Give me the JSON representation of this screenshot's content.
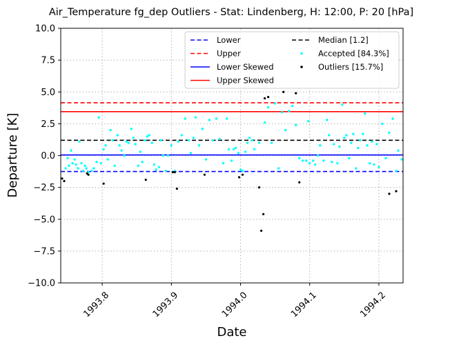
{
  "chart_data": {
    "type": "scatter",
    "title": "Air_Temperature fg_dep Outliers - Stat: Lindenberg, H: 12:00, P: 20 [hPa]",
    "xlabel": "Date",
    "ylabel": "Departure [K]",
    "xlim": [
      1993.74,
      1994.235
    ],
    "ylim": [
      -10.0,
      10.0
    ],
    "grid": true,
    "legend_position": "top-right",
    "xticks": [
      {
        "value": 1993.8,
        "label": "1993.8"
      },
      {
        "value": 1993.9,
        "label": "1993.9"
      },
      {
        "value": 1994.0,
        "label": "1994.0"
      },
      {
        "value": 1994.1,
        "label": "1994.1"
      },
      {
        "value": 1994.2,
        "label": "1994.2"
      }
    ],
    "yticks": [
      {
        "value": 10.0,
        "label": "10.0"
      },
      {
        "value": 7.5,
        "label": "7.5"
      },
      {
        "value": 5.0,
        "label": "5.0"
      },
      {
        "value": 2.5,
        "label": "2.5"
      },
      {
        "value": 0.0,
        "label": "0.0"
      },
      {
        "value": -2.5,
        "label": "−2.5"
      },
      {
        "value": -5.0,
        "label": "−5.0"
      },
      {
        "value": -7.5,
        "label": "−7.5"
      },
      {
        "value": -10.0,
        "label": "−10.0"
      }
    ],
    "reference_lines": [
      {
        "name": "Lower",
        "y": -1.25,
        "color": "#0000ff",
        "style": "dashed"
      },
      {
        "name": "Upper",
        "y": 4.15,
        "color": "#ff0000",
        "style": "dashed"
      },
      {
        "name": "Lower Skewed",
        "y": 0.05,
        "color": "#0000ff",
        "style": "solid"
      },
      {
        "name": "Upper Skewed",
        "y": 3.45,
        "color": "#ff0000",
        "style": "solid"
      },
      {
        "name": "Median [1.2]",
        "y": 1.2,
        "color": "#000000",
        "style": "dashed"
      }
    ],
    "legend_order": [
      "Lower",
      "Median [1.2]",
      "Upper",
      "Accepted [84.3%]",
      "Lower Skewed",
      "Outliers [15.7%]",
      "Upper Skewed"
    ],
    "series": [
      {
        "name": "Accepted [84.3%]",
        "color": "#00ffff",
        "points": [
          [
            1993.747,
            -1.0
          ],
          [
            1993.75,
            -0.2
          ],
          [
            1993.752,
            -0.8
          ],
          [
            1993.755,
            0.4
          ],
          [
            1993.757,
            -0.6
          ],
          [
            1993.76,
            -0.3
          ],
          [
            1993.762,
            -0.7
          ],
          [
            1993.765,
            -1.0
          ],
          [
            1993.767,
            1.1
          ],
          [
            1993.77,
            -0.6
          ],
          [
            1993.772,
            -1.2
          ],
          [
            1993.775,
            -0.8
          ],
          [
            1993.777,
            -1.0
          ],
          [
            1993.78,
            -1.3
          ],
          [
            1993.785,
            -1.2
          ],
          [
            1993.788,
            -1.0
          ],
          [
            1993.792,
            -0.5
          ],
          [
            1993.795,
            3.0
          ],
          [
            1993.798,
            -0.6
          ],
          [
            1993.802,
            0.5
          ],
          [
            1993.805,
            0.8
          ],
          [
            1993.808,
            -0.3
          ],
          [
            1993.812,
            2.0
          ],
          [
            1993.815,
            1.2
          ],
          [
            1993.818,
            -0.8
          ],
          [
            1993.822,
            1.6
          ],
          [
            1993.825,
            0.8
          ],
          [
            1993.828,
            0.4
          ],
          [
            1993.832,
            0.0
          ],
          [
            1993.835,
            1.1
          ],
          [
            1993.838,
            1.0
          ],
          [
            1993.842,
            2.1
          ],
          [
            1993.845,
            1.4
          ],
          [
            1993.848,
            0.9
          ],
          [
            1993.852,
            -0.8
          ],
          [
            1993.855,
            0.3
          ],
          [
            1993.858,
            -0.5
          ],
          [
            1993.862,
            1.2
          ],
          [
            1993.865,
            1.5
          ],
          [
            1993.868,
            1.6
          ],
          [
            1993.872,
            1.0
          ],
          [
            1993.875,
            -0.7
          ],
          [
            1993.878,
            -1.1
          ],
          [
            1993.882,
            -0.9
          ],
          [
            1993.885,
            1.2
          ],
          [
            1993.888,
            0.0
          ],
          [
            1993.892,
            -1.2
          ],
          [
            1993.895,
            0.0
          ],
          [
            1993.9,
            0.8
          ],
          [
            1993.905,
            -1.2
          ],
          [
            1993.91,
            1.1
          ],
          [
            1993.915,
            1.6
          ],
          [
            1993.92,
            2.9
          ],
          [
            1993.925,
            1.2
          ],
          [
            1993.928,
            0.2
          ],
          [
            1993.932,
            1.4
          ],
          [
            1993.935,
            3.0
          ],
          [
            1993.94,
            0.8
          ],
          [
            1993.945,
            2.1
          ],
          [
            1993.95,
            -0.3
          ],
          [
            1993.955,
            2.8
          ],
          [
            1993.96,
            1.2
          ],
          [
            1993.965,
            2.9
          ],
          [
            1993.97,
            1.3
          ],
          [
            1993.975,
            -0.6
          ],
          [
            1993.98,
            2.9
          ],
          [
            1993.983,
            0.5
          ],
          [
            1993.987,
            -0.4
          ],
          [
            1993.99,
            0.5
          ],
          [
            1993.993,
            0.6
          ],
          [
            1993.997,
            0.2
          ],
          [
            1994.0,
            -1.1
          ],
          [
            1994.003,
            -1.2
          ],
          [
            1994.007,
            0.3
          ],
          [
            1994.01,
            1.0
          ],
          [
            1994.013,
            1.4
          ],
          [
            1994.017,
            1.2
          ],
          [
            1994.02,
            0.5
          ],
          [
            1994.027,
            1.0
          ],
          [
            1994.035,
            2.6
          ],
          [
            1994.04,
            3.8
          ],
          [
            1994.045,
            1.0
          ],
          [
            1994.05,
            4.1
          ],
          [
            1994.055,
            -1.0
          ],
          [
            1994.06,
            3.4
          ],
          [
            1994.065,
            2.0
          ],
          [
            1994.07,
            3.5
          ],
          [
            1994.075,
            3.9
          ],
          [
            1994.08,
            2.4
          ],
          [
            1994.085,
            -0.2
          ],
          [
            1994.09,
            -0.4
          ],
          [
            1994.095,
            -0.4
          ],
          [
            1994.098,
            2.7
          ],
          [
            1994.1,
            -0.6
          ],
          [
            1994.105,
            -0.4
          ],
          [
            1994.108,
            -0.7
          ],
          [
            1994.112,
            0.0
          ],
          [
            1994.115,
            0.8
          ],
          [
            1994.12,
            -0.4
          ],
          [
            1994.125,
            2.8
          ],
          [
            1994.128,
            1.6
          ],
          [
            1994.132,
            -0.5
          ],
          [
            1994.135,
            0.9
          ],
          [
            1994.14,
            -0.6
          ],
          [
            1994.143,
            0.7
          ],
          [
            1994.147,
            4.0
          ],
          [
            1994.15,
            1.4
          ],
          [
            1994.153,
            1.6
          ],
          [
            1994.157,
            -0.2
          ],
          [
            1994.16,
            1.0
          ],
          [
            1994.163,
            1.7
          ],
          [
            1994.167,
            -1.0
          ],
          [
            1994.17,
            0.6
          ],
          [
            1994.173,
            1.2
          ],
          [
            1994.177,
            1.7
          ],
          [
            1994.18,
            3.3
          ],
          [
            1994.183,
            0.8
          ],
          [
            1994.187,
            -0.6
          ],
          [
            1994.19,
            1.1
          ],
          [
            1994.193,
            -0.7
          ],
          [
            1994.197,
            0.9
          ],
          [
            1994.2,
            -0.9
          ],
          [
            1994.205,
            2.5
          ],
          [
            1994.21,
            -0.2
          ],
          [
            1994.215,
            1.8
          ],
          [
            1994.22,
            2.9
          ],
          [
            1994.225,
            -1.2
          ],
          [
            1994.228,
            0.4
          ],
          [
            1994.233,
            -0.3
          ]
        ]
      },
      {
        "name": "Outliers [15.7%]",
        "color": "#000000",
        "points": [
          [
            1993.742,
            -1.8
          ],
          [
            1993.745,
            -2.0
          ],
          [
            1993.778,
            -1.4
          ],
          [
            1993.78,
            -1.5
          ],
          [
            1993.802,
            -2.2
          ],
          [
            1993.863,
            -1.9
          ],
          [
            1993.902,
            -1.3
          ],
          [
            1993.905,
            -1.3
          ],
          [
            1993.908,
            -2.6
          ],
          [
            1993.948,
            -1.5
          ],
          [
            1993.998,
            -1.7
          ],
          [
            1994.003,
            -1.5
          ],
          [
            1994.027,
            -2.5
          ],
          [
            1994.03,
            -5.9
          ],
          [
            1994.033,
            -4.6
          ],
          [
            1994.035,
            4.5
          ],
          [
            1994.04,
            4.6
          ],
          [
            1994.062,
            5.0
          ],
          [
            1994.08,
            4.9
          ],
          [
            1994.085,
            -2.1
          ],
          [
            1994.215,
            -3.0
          ],
          [
            1994.225,
            -2.8
          ]
        ]
      }
    ]
  }
}
